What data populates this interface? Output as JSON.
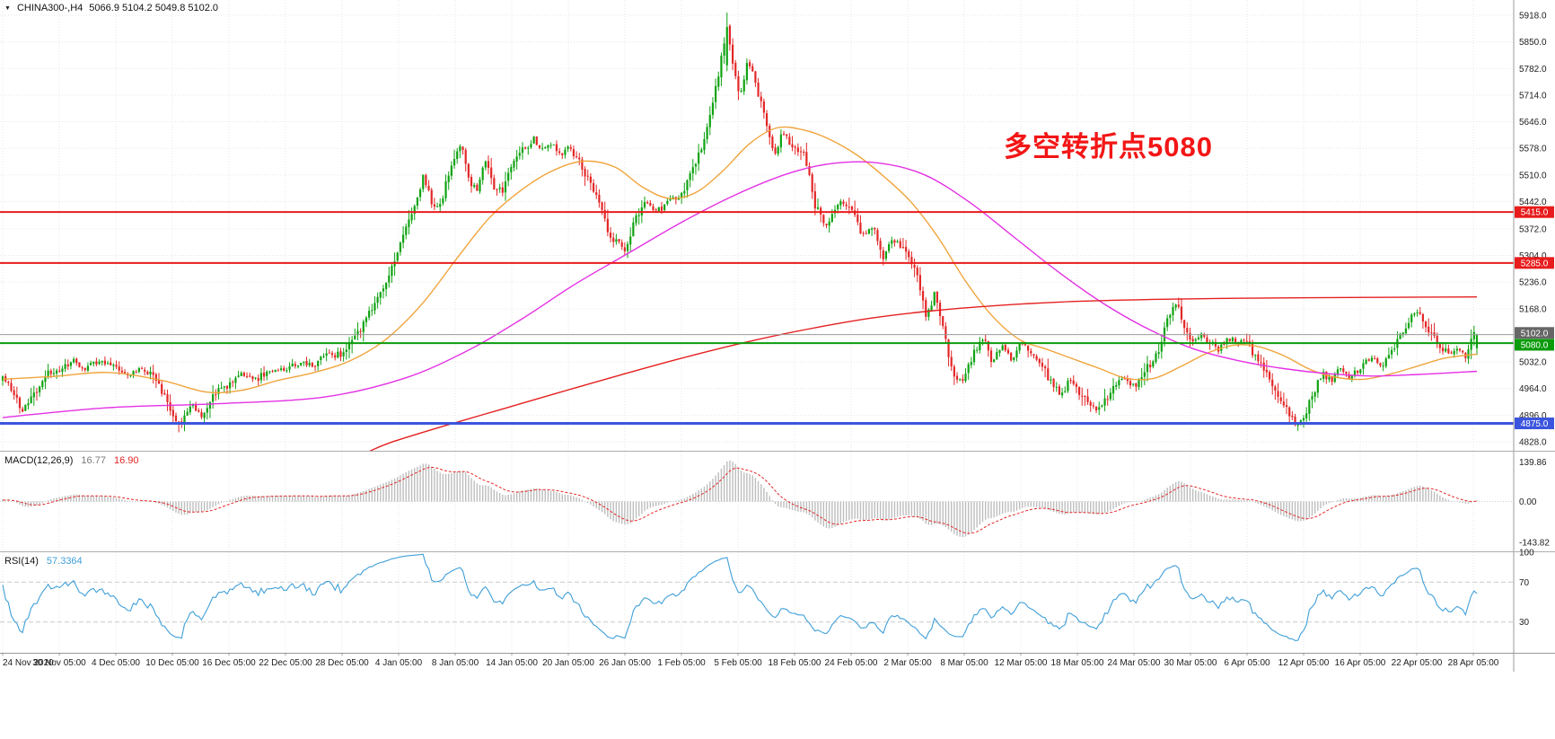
{
  "header": {
    "symbol": "CHINA300-,H4",
    "ohlc": "5066.9 5104.2 5049.8 5102.0"
  },
  "chart_data": [
    {
      "type": "candlestick",
      "symbol": "CHINA300-",
      "timeframe": "H4",
      "current_bar": {
        "open": 5066.9,
        "high": 5104.2,
        "low": 5049.8,
        "close": 5102.0
      },
      "bar_count": 520,
      "colors": {
        "up": "#0fa312",
        "down": "#e32727"
      },
      "y_axis": {
        "ticks": [
          5918,
          5850,
          5782,
          5714,
          5646,
          5578,
          5510,
          5442,
          5372,
          5304,
          5236,
          5168,
          5032,
          4964,
          4896,
          4828
        ]
      },
      "x_axis": {
        "labels": [
          "24 Nov 2020",
          "30 Nov 05:00",
          "4 Dec 05:00",
          "10 Dec 05:00",
          "16 Dec 05:00",
          "22 Dec 05:00",
          "28 Dec 05:00",
          "4 Jan 05:00",
          "8 Jan 05:00",
          "14 Jan 05:00",
          "20 Jan 05:00",
          "26 Jan 05:00",
          "1 Feb 05:00",
          "5 Feb 05:00",
          "18 Feb 05:00",
          "24 Feb 05:00",
          "2 Mar 05:00",
          "8 Mar 05:00",
          "12 Mar 05:00",
          "18 Mar 05:00",
          "24 Mar 05:00",
          "30 Mar 05:00",
          "6 Apr 05:00",
          "12 Apr 05:00",
          "16 Apr 05:00",
          "22 Apr 05:00",
          "28 Apr 05:00"
        ]
      },
      "levels": [
        {
          "price": 5415.0,
          "color": "#e81c1c",
          "width": 2
        },
        {
          "price": 5285.0,
          "color": "#e81c1c",
          "width": 2
        },
        {
          "price": 5102.0,
          "color": "#9a9a9a",
          "width": 1,
          "tag_bg": "#666666",
          "role": "current-price"
        },
        {
          "price": 5080.0,
          "color": "#0b9b0b",
          "width": 2
        },
        {
          "price": 4875.0,
          "color": "#3b55de",
          "width": 3
        }
      ],
      "annotation": {
        "text": "多空转折点5080",
        "color": "#f31616"
      },
      "price_path_anchors": [
        [
          3,
          4985
        ],
        [
          15,
          4955
        ],
        [
          25,
          4905
        ],
        [
          40,
          4950
        ],
        [
          55,
          5005
        ],
        [
          66,
          5010
        ],
        [
          80,
          5040
        ],
        [
          95,
          5015
        ],
        [
          110,
          5035
        ],
        [
          129,
          5020
        ],
        [
          145,
          5000
        ],
        [
          160,
          5015
        ],
        [
          175,
          4985
        ],
        [
          192,
          4905
        ],
        [
          200,
          4870
        ],
        [
          212,
          4925
        ],
        [
          225,
          4895
        ],
        [
          240,
          4950
        ],
        [
          255,
          4975
        ],
        [
          270,
          5000
        ],
        [
          285,
          4985
        ],
        [
          300,
          5015
        ],
        [
          318,
          5010
        ],
        [
          335,
          5035
        ],
        [
          350,
          5020
        ],
        [
          365,
          5050
        ],
        [
          381,
          5050
        ],
        [
          392,
          5085
        ],
        [
          405,
          5130
        ],
        [
          420,
          5190
        ],
        [
          432,
          5250
        ],
        [
          444,
          5320
        ],
        [
          455,
          5390
        ],
        [
          465,
          5450
        ],
        [
          472,
          5510
        ],
        [
          480,
          5445
        ],
        [
          490,
          5430
        ],
        [
          500,
          5520
        ],
        [
          507,
          5565
        ],
        [
          514,
          5590
        ],
        [
          522,
          5500
        ],
        [
          530,
          5470
        ],
        [
          540,
          5545
        ],
        [
          550,
          5480
        ],
        [
          560,
          5465
        ],
        [
          570,
          5540
        ],
        [
          582,
          5570
        ],
        [
          595,
          5605
        ],
        [
          605,
          5570
        ],
        [
          615,
          5590
        ],
        [
          625,
          5555
        ],
        [
          633,
          5580
        ],
        [
          645,
          5545
        ],
        [
          655,
          5495
        ],
        [
          668,
          5430
        ],
        [
          680,
          5350
        ],
        [
          696,
          5320
        ],
        [
          708,
          5395
        ],
        [
          720,
          5440
        ],
        [
          732,
          5415
        ],
        [
          745,
          5450
        ],
        [
          759,
          5455
        ],
        [
          772,
          5520
        ],
        [
          785,
          5610
        ],
        [
          797,
          5730
        ],
        [
          805,
          5830
        ],
        [
          810,
          5900
        ],
        [
          816,
          5800
        ],
        [
          824,
          5710
        ],
        [
          833,
          5800
        ],
        [
          842,
          5740
        ],
        [
          852,
          5650
        ],
        [
          862,
          5560
        ],
        [
          872,
          5615
        ],
        [
          885,
          5580
        ],
        [
          897,
          5555
        ],
        [
          908,
          5430
        ],
        [
          920,
          5385
        ],
        [
          933,
          5440
        ],
        [
          948,
          5425
        ],
        [
          960,
          5350
        ],
        [
          972,
          5385
        ],
        [
          984,
          5300
        ],
        [
          996,
          5345
        ],
        [
          1011,
          5315
        ],
        [
          1022,
          5245
        ],
        [
          1032,
          5150
        ],
        [
          1042,
          5215
        ],
        [
          1052,
          5100
        ],
        [
          1063,
          4990
        ],
        [
          1074,
          4995
        ],
        [
          1085,
          5060
        ],
        [
          1095,
          5100
        ],
        [
          1105,
          5030
        ],
        [
          1115,
          5080
        ],
        [
          1126,
          5040
        ],
        [
          1137,
          5080
        ],
        [
          1150,
          5060
        ],
        [
          1162,
          5015
        ],
        [
          1172,
          4975
        ],
        [
          1182,
          4945
        ],
        [
          1192,
          4990
        ],
        [
          1200,
          4960
        ],
        [
          1210,
          4930
        ],
        [
          1222,
          4900
        ],
        [
          1235,
          4950
        ],
        [
          1250,
          4990
        ],
        [
          1263,
          4970
        ],
        [
          1276,
          5010
        ],
        [
          1290,
          5055
        ],
        [
          1302,
          5160
        ],
        [
          1312,
          5175
        ],
        [
          1320,
          5120
        ],
        [
          1326,
          5085
        ],
        [
          1340,
          5105
        ],
        [
          1355,
          5060
        ],
        [
          1370,
          5090
        ],
        [
          1389,
          5080
        ],
        [
          1400,
          5040
        ],
        [
          1412,
          4995
        ],
        [
          1424,
          4950
        ],
        [
          1436,
          4900
        ],
        [
          1446,
          4865
        ],
        [
          1452,
          4890
        ],
        [
          1462,
          4945
        ],
        [
          1472,
          5005
        ],
        [
          1482,
          4985
        ],
        [
          1492,
          5015
        ],
        [
          1503,
          4995
        ],
        [
          1515,
          5010
        ],
        [
          1527,
          5045
        ],
        [
          1538,
          5020
        ],
        [
          1549,
          5055
        ],
        [
          1560,
          5095
        ],
        [
          1570,
          5145
        ],
        [
          1578,
          5160
        ],
        [
          1590,
          5120
        ],
        [
          1602,
          5080
        ],
        [
          1612,
          5050
        ],
        [
          1622,
          5065
        ],
        [
          1632,
          5040
        ],
        [
          1641,
          5102
        ]
      ],
      "extremes": {
        "high": [
          810,
          5925
        ],
        "lows": [
          [
            200,
            4852
          ],
          [
            1446,
            4856
          ]
        ]
      },
      "moving_averages": [
        {
          "name": "fast",
          "color": "#f0a43c",
          "anchors": [
            [
              3,
              4988
            ],
            [
              60,
              4995
            ],
            [
              120,
              5005
            ],
            [
              180,
              4985
            ],
            [
              230,
              4955
            ],
            [
              270,
              4960
            ],
            [
              310,
              4985
            ],
            [
              350,
              5005
            ],
            [
              390,
              5035
            ],
            [
              430,
              5090
            ],
            [
              470,
              5180
            ],
            [
              510,
              5300
            ],
            [
              545,
              5400
            ],
            [
              580,
              5470
            ],
            [
              615,
              5520
            ],
            [
              650,
              5545
            ],
            [
              685,
              5530
            ],
            [
              715,
              5480
            ],
            [
              745,
              5450
            ],
            [
              775,
              5465
            ],
            [
              805,
              5520
            ],
            [
              835,
              5590
            ],
            [
              865,
              5630
            ],
            [
              895,
              5625
            ],
            [
              925,
              5600
            ],
            [
              955,
              5560
            ],
            [
              985,
              5505
            ],
            [
              1015,
              5440
            ],
            [
              1045,
              5350
            ],
            [
              1075,
              5240
            ],
            [
              1105,
              5150
            ],
            [
              1135,
              5090
            ],
            [
              1165,
              5065
            ],
            [
              1195,
              5040
            ],
            [
              1225,
              5015
            ],
            [
              1255,
              4990
            ],
            [
              1285,
              4990
            ],
            [
              1315,
              5020
            ],
            [
              1345,
              5055
            ],
            [
              1375,
              5075
            ],
            [
              1400,
              5072
            ],
            [
              1430,
              5048
            ],
            [
              1460,
              5012
            ],
            [
              1490,
              4992
            ],
            [
              1520,
              4988
            ],
            [
              1550,
              5002
            ],
            [
              1580,
              5022
            ],
            [
              1610,
              5042
            ],
            [
              1645,
              5052
            ]
          ]
        },
        {
          "name": "medium",
          "color": "#e431e4",
          "anchors": [
            [
              3,
              4890
            ],
            [
              120,
              4915
            ],
            [
              240,
              4925
            ],
            [
              360,
              4942
            ],
            [
              450,
              4990
            ],
            [
              520,
              5060
            ],
            [
              580,
              5140
            ],
            [
              640,
              5230
            ],
            [
              700,
              5310
            ],
            [
              760,
              5390
            ],
            [
              820,
              5460
            ],
            [
              880,
              5515
            ],
            [
              930,
              5540
            ],
            [
              980,
              5540
            ],
            [
              1030,
              5510
            ],
            [
              1080,
              5440
            ],
            [
              1130,
              5350
            ],
            [
              1180,
              5260
            ],
            [
              1230,
              5180
            ],
            [
              1280,
              5115
            ],
            [
              1330,
              5065
            ],
            [
              1380,
              5035
            ],
            [
              1430,
              5015
            ],
            [
              1480,
              5002
            ],
            [
              1530,
              4996
            ],
            [
              1580,
              5000
            ],
            [
              1645,
              5008
            ]
          ]
        },
        {
          "name": "slow",
          "color": "#e42020",
          "anchors": [
            [
              408,
              4800
            ],
            [
              435,
              4826
            ],
            [
              500,
              4872
            ],
            [
              560,
              4912
            ],
            [
              620,
              4952
            ],
            [
              690,
              4998
            ],
            [
              760,
              5042
            ],
            [
              830,
              5082
            ],
            [
              900,
              5116
            ],
            [
              970,
              5144
            ],
            [
              1040,
              5163
            ],
            [
              1110,
              5176
            ],
            [
              1180,
              5185
            ],
            [
              1250,
              5190
            ],
            [
              1320,
              5193
            ],
            [
              1390,
              5195
            ],
            [
              1460,
              5196
            ],
            [
              1530,
              5197
            ],
            [
              1645,
              5198
            ]
          ]
        }
      ]
    },
    {
      "type": "macd",
      "label": "MACD(12,26,9)",
      "value_main": "16.77",
      "value_signal": "16.90",
      "params": [
        12,
        26,
        9
      ],
      "y_ticks": [
        "139.86",
        "0.00",
        "-143.82"
      ],
      "colors": {
        "histogram": "#bdbdbd",
        "signal": "#e32727"
      }
    },
    {
      "type": "rsi",
      "label": "RSI(14)",
      "value": "57.3364",
      "period": 14,
      "levels": [
        70,
        30
      ],
      "y_ticks": [
        "100",
        "70",
        "30"
      ],
      "color": "#3f9fd8"
    }
  ]
}
